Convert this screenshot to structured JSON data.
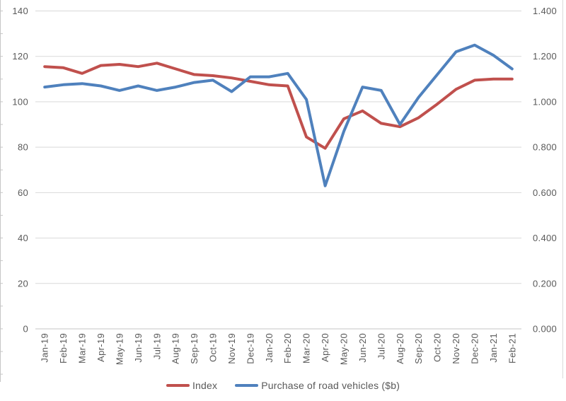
{
  "palette": {
    "grid": "#D9D9D9",
    "axis": "#C6C6C6",
    "text": "#595959",
    "background": "#FFFFFF",
    "index_red": "#C0504D",
    "vehicles_blue": "#4F81BD"
  },
  "legend": {
    "items": [
      "Index",
      "Purchase of road vehicles ($b)"
    ]
  },
  "chart_data": {
    "type": "line",
    "title": "",
    "xlabel": "",
    "ylabel_left": "",
    "ylabel_right": "",
    "grid": true,
    "legend_position": "bottom",
    "categories": [
      "Jan-19",
      "Feb-19",
      "Mar-19",
      "Apr-19",
      "May-19",
      "Jun-19",
      "Jul-19",
      "Aug-19",
      "Sep-19",
      "Oct-19",
      "Nov-19",
      "Dec-19",
      "Jan-20",
      "Feb-20",
      "Mar-20",
      "Apr-20",
      "May-20",
      "Jun-20",
      "Jul-20",
      "Aug-20",
      "Sep-20",
      "Oct-20",
      "Nov-20",
      "Dec-20",
      "Jan-21",
      "Feb-21"
    ],
    "left_axis": {
      "min": 0,
      "max": 140,
      "step": 20,
      "tick_labels": [
        "0",
        "20",
        "40",
        "60",
        "80",
        "100",
        "120",
        "140"
      ]
    },
    "right_axis": {
      "min": 0,
      "max": 1.4,
      "step": 0.2,
      "tick_labels": [
        "0.000",
        "0.200",
        "0.400",
        "0.600",
        "0.800",
        "1.000",
        "1.200",
        "1.400"
      ]
    },
    "series": [
      {
        "id": "index",
        "name": "Index",
        "axis": "left",
        "color": "#C0504D",
        "values": [
          115.5,
          115,
          112.5,
          116,
          116.5,
          115.5,
          117,
          114.5,
          112,
          111.5,
          110.5,
          109,
          107.5,
          107,
          84.5,
          79.5,
          92.5,
          96,
          90.5,
          89,
          93,
          99,
          105.5,
          109.5,
          110,
          110
        ]
      },
      {
        "id": "vehicles",
        "name": "Purchase of road vehicles ($b)",
        "axis": "right",
        "color": "#4F81BD",
        "values": [
          1.065,
          1.075,
          1.08,
          1.07,
          1.05,
          1.07,
          1.05,
          1.065,
          1.085,
          1.095,
          1.045,
          1.11,
          1.11,
          1.125,
          1.01,
          0.63,
          0.87,
          1.065,
          1.05,
          0.9,
          1.02,
          1.12,
          1.22,
          1.25,
          1.205,
          1.145
        ]
      }
    ]
  }
}
